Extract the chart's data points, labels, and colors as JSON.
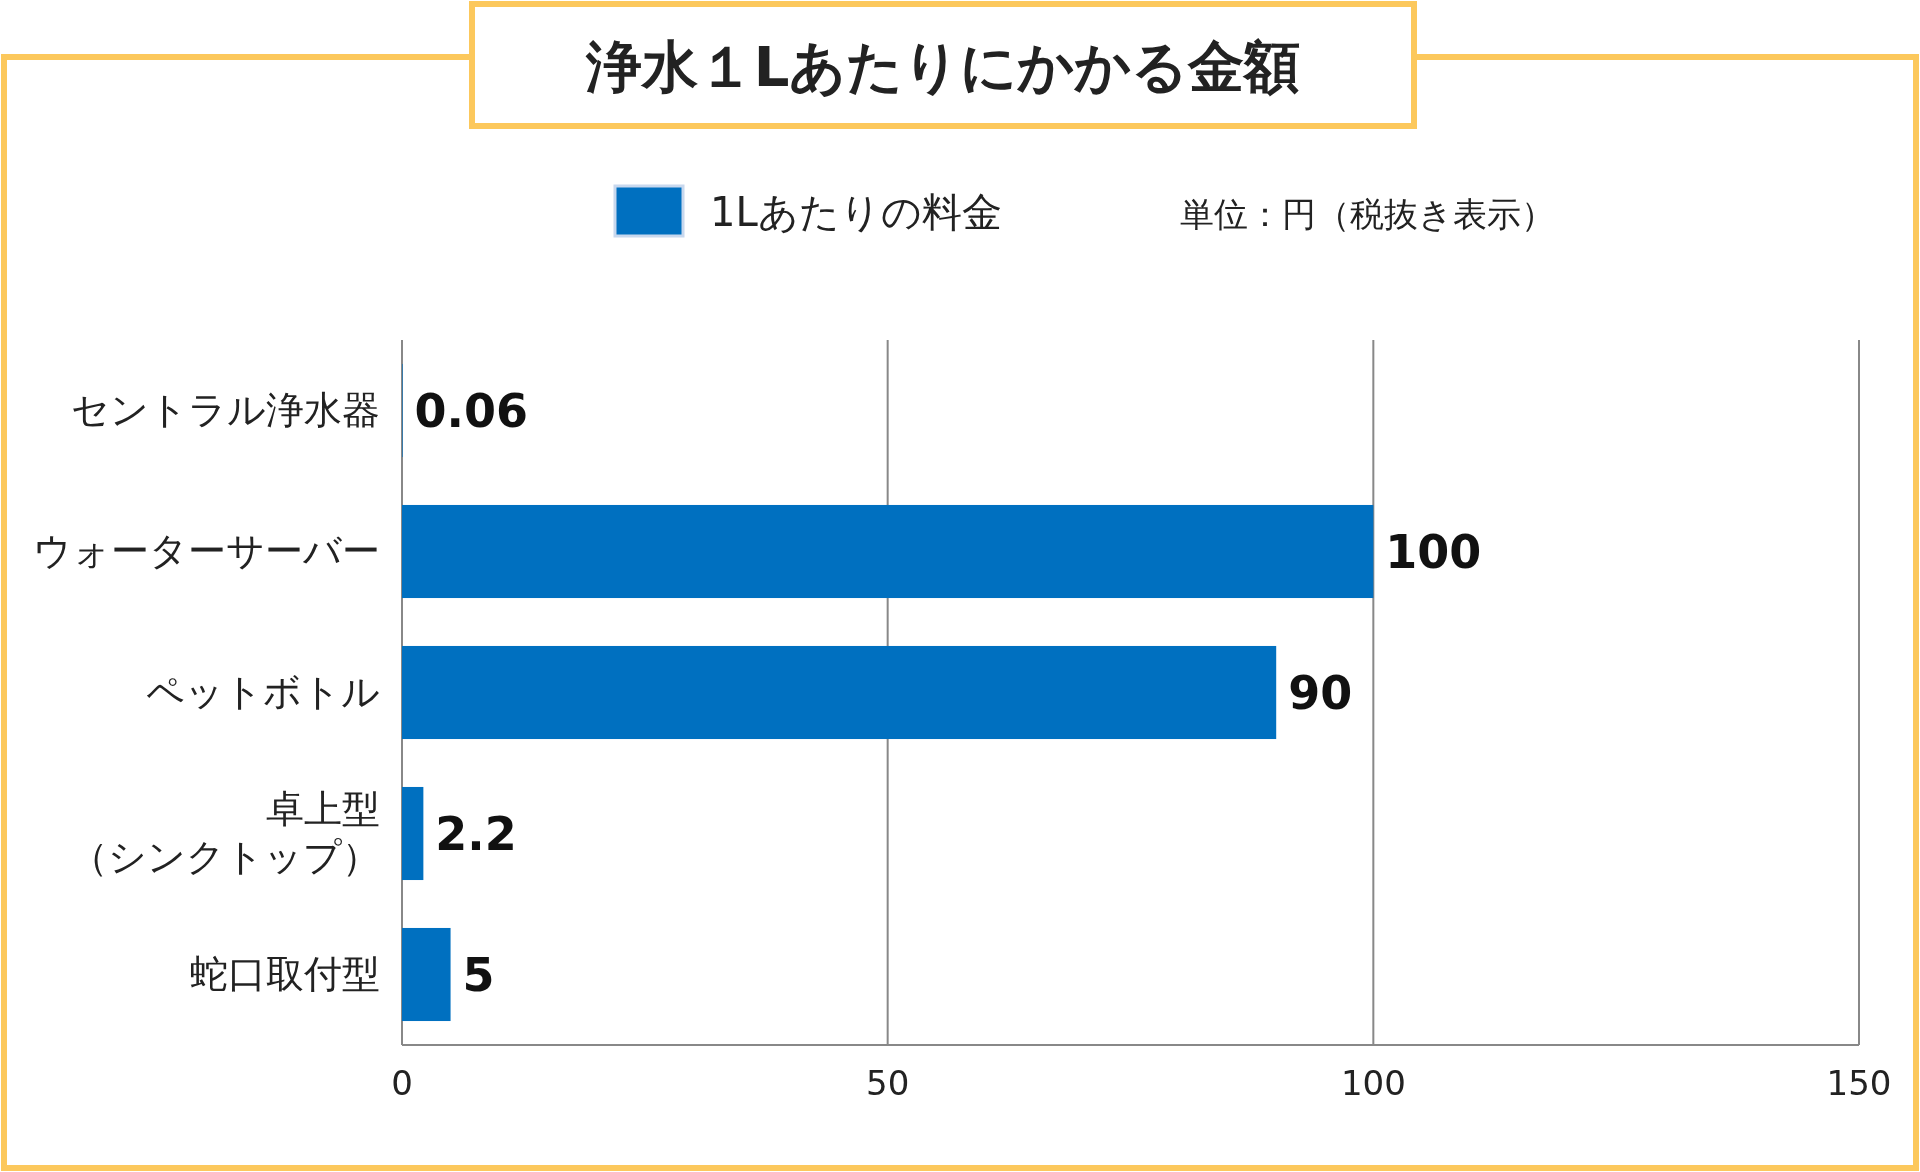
{
  "chart_data": {
    "type": "bar",
    "orientation": "horizontal",
    "title": "浄水１Lあたりにかかる金額",
    "categories": [
      "セントラル浄水器",
      "ウォーターサーバー",
      "ペットボトル",
      "卓上型（シンクトップ）",
      "蛇口取付型"
    ],
    "series": [
      {
        "name": "1Lあたりの料金",
        "color": "#0070c0",
        "values": [
          0.06,
          100,
          90,
          2.2,
          5
        ]
      }
    ],
    "xlim": [
      0,
      150
    ],
    "xticks": [
      0,
      50,
      100,
      150
    ],
    "grid": "x",
    "legend": "top",
    "data_labels": true,
    "annotations": [
      "単位：円（税抜き表示）"
    ]
  }
}
